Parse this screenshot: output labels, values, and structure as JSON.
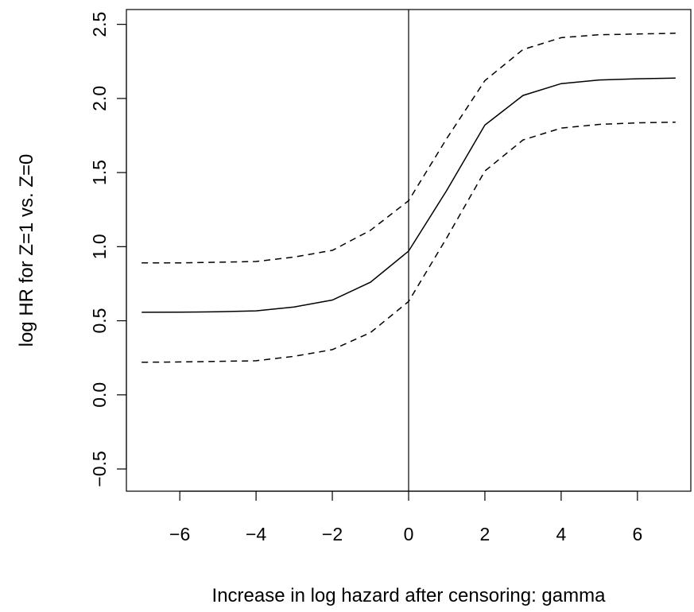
{
  "chart_data": {
    "type": "line",
    "title": "",
    "xlabel": "Increase in log hazard after censoring: gamma",
    "ylabel": "log HR for Z=1 vs. Z=0",
    "xlim": [
      -7.4,
      7.4
    ],
    "ylim": [
      -0.65,
      2.6
    ],
    "x_ticks": [
      -6,
      -4,
      -2,
      0,
      2,
      4,
      6
    ],
    "x_tick_labels": [
      "−6",
      "−4",
      "−2",
      "0",
      "2",
      "4",
      "6"
    ],
    "y_ticks": [
      -0.5,
      0.0,
      0.5,
      1.0,
      1.5,
      2.0,
      2.5
    ],
    "y_tick_labels": [
      "−0.5",
      "0.0",
      "0.5",
      "1.0",
      "1.5",
      "2.0",
      "2.5"
    ],
    "grid": false,
    "reference_lines": [
      {
        "orientation": "vertical",
        "x": 0
      }
    ],
    "x": [
      -7,
      -6,
      -5,
      -4,
      -3,
      -2,
      -1,
      0,
      1,
      2,
      3,
      4,
      5,
      6,
      7
    ],
    "series": [
      {
        "style": "dashed",
        "values": [
          0.89,
          0.89,
          0.895,
          0.9,
          0.93,
          0.975,
          1.11,
          1.31,
          1.73,
          2.12,
          2.33,
          2.41,
          2.43,
          2.435,
          2.44
        ]
      },
      {
        "style": "solid",
        "values": [
          0.557,
          0.558,
          0.561,
          0.567,
          0.593,
          0.64,
          0.76,
          0.97,
          1.38,
          1.82,
          2.02,
          2.1,
          2.125,
          2.133,
          2.137
        ]
      },
      {
        "style": "dashed",
        "values": [
          0.22,
          0.222,
          0.226,
          0.23,
          0.26,
          0.305,
          0.42,
          0.63,
          1.06,
          1.51,
          1.72,
          1.8,
          1.825,
          1.835,
          1.84
        ]
      }
    ]
  }
}
